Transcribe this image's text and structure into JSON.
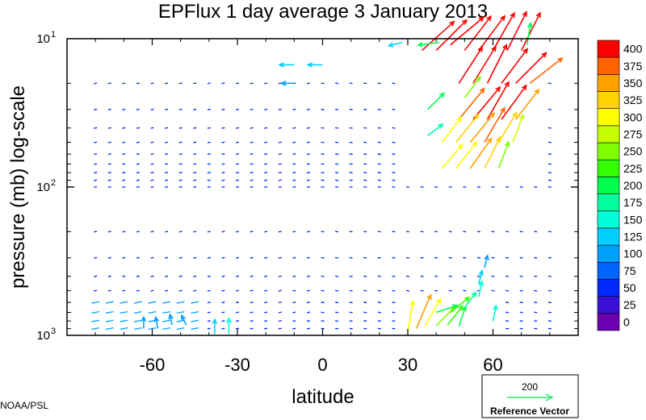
{
  "chart_data": {
    "type": "vector-field",
    "title": "EPFlux  1 day average  3 January   2013",
    "xlabel": "latitude",
    "ylabel": "pressure (mb)  log-scale",
    "xlim": [
      -90,
      90
    ],
    "ylim": [
      1000,
      10
    ],
    "y_scale": "log",
    "x_ticks": [
      -60,
      -30,
      0,
      30,
      60
    ],
    "x_tick_labels": [
      "-60",
      "-30",
      "0",
      "30",
      "60"
    ],
    "y_ticks": [
      1000,
      100,
      10
    ],
    "y_tick_labels": [
      {
        "base": "10",
        "exp": "3"
      },
      {
        "base": "10",
        "exp": "2"
      },
      {
        "base": "10",
        "exp": "1"
      }
    ],
    "colorbar": {
      "levels": [
        0,
        25,
        50,
        75,
        100,
        125,
        150,
        175,
        200,
        225,
        250,
        275,
        300,
        325,
        350,
        375,
        400
      ],
      "labels": [
        "0",
        "25",
        "50",
        "75",
        "100",
        "125",
        "150",
        "175",
        "200",
        "225",
        "250",
        "275",
        "300",
        "325",
        "350",
        "375",
        "400"
      ],
      "colors": [
        "#6a00b0",
        "#3a10d8",
        "#0028ff",
        "#0064ff",
        "#00a0ff",
        "#00d0ff",
        "#00ffd8",
        "#00ffa0",
        "#00ff50",
        "#32ff00",
        "#80ff00",
        "#c8ff00",
        "#ffff00",
        "#ffd200",
        "#ffa000",
        "#ff6400",
        "#ff0000"
      ]
    },
    "reference_vector": {
      "magnitude": 200,
      "label": "Reference Vector",
      "value_label": "200",
      "color": "#2ee86a"
    },
    "vectors": [
      {
        "lat": 35,
        "p": 12,
        "u": 1.0,
        "v": -0.9,
        "mag": 410
      },
      {
        "lat": 40,
        "p": 12,
        "u": 1.1,
        "v": -1.1,
        "mag": 410
      },
      {
        "lat": 45,
        "p": 11,
        "u": 1.2,
        "v": -1.0,
        "mag": 410
      },
      {
        "lat": 50,
        "p": 12,
        "u": 1.0,
        "v": -1.3,
        "mag": 410
      },
      {
        "lat": 55,
        "p": 12,
        "u": 0.9,
        "v": -1.2,
        "mag": 410
      },
      {
        "lat": 60,
        "p": 12,
        "u": 0.8,
        "v": -1.4,
        "mag": 410
      },
      {
        "lat": 65,
        "p": 12,
        "u": 0.6,
        "v": -1.2,
        "mag": 410
      },
      {
        "lat": 70,
        "p": 12,
        "u": 0.5,
        "v": -1.0,
        "mag": 400
      },
      {
        "lat": 48,
        "p": 20,
        "u": 0.9,
        "v": -1.4,
        "mag": 410
      },
      {
        "lat": 53,
        "p": 20,
        "u": 0.8,
        "v": -1.3,
        "mag": 410
      },
      {
        "lat": 58,
        "p": 20,
        "u": 0.7,
        "v": -1.4,
        "mag": 410
      },
      {
        "lat": 63,
        "p": 20,
        "u": 0.9,
        "v": -1.2,
        "mag": 410
      },
      {
        "lat": 68,
        "p": 20,
        "u": 1.0,
        "v": -1.0,
        "mag": 410
      },
      {
        "lat": 73,
        "p": 20,
        "u": 0.9,
        "v": -0.7,
        "mag": 390
      },
      {
        "lat": 48,
        "p": 35,
        "u": 0.9,
        "v": -1.1,
        "mag": 380
      },
      {
        "lat": 53,
        "p": 35,
        "u": 1.0,
        "v": -1.2,
        "mag": 400
      },
      {
        "lat": 58,
        "p": 35,
        "u": 0.8,
        "v": -1.4,
        "mag": 410
      },
      {
        "lat": 63,
        "p": 35,
        "u": 0.8,
        "v": -1.1,
        "mag": 400
      },
      {
        "lat": 68,
        "p": 35,
        "u": 0.7,
        "v": -0.9,
        "mag": 360
      },
      {
        "lat": 42,
        "p": 50,
        "u": 0.7,
        "v": -0.9,
        "mag": 300
      },
      {
        "lat": 47,
        "p": 50,
        "u": 0.8,
        "v": -1.0,
        "mag": 340
      },
      {
        "lat": 52,
        "p": 50,
        "u": 0.9,
        "v": -1.1,
        "mag": 360
      },
      {
        "lat": 57,
        "p": 50,
        "u": 0.7,
        "v": -1.2,
        "mag": 380
      },
      {
        "lat": 62,
        "p": 50,
        "u": 0.6,
        "v": -1.0,
        "mag": 330
      },
      {
        "lat": 67,
        "p": 50,
        "u": 0.3,
        "v": -0.8,
        "mag": 280
      },
      {
        "lat": 42,
        "p": 75,
        "u": 0.6,
        "v": -0.7,
        "mag": 300
      },
      {
        "lat": 47,
        "p": 75,
        "u": 0.7,
        "v": -0.9,
        "mag": 320
      },
      {
        "lat": 52,
        "p": 75,
        "u": 0.7,
        "v": -1.0,
        "mag": 350
      },
      {
        "lat": 57,
        "p": 75,
        "u": 0.5,
        "v": -1.0,
        "mag": 330
      },
      {
        "lat": 62,
        "p": 75,
        "u": 0.3,
        "v": -0.8,
        "mag": 270
      },
      {
        "lat": 37,
        "p": 30,
        "u": 0.5,
        "v": -0.5,
        "mag": 220
      },
      {
        "lat": 37,
        "p": 45,
        "u": 0.4,
        "v": -0.3,
        "mag": 180
      },
      {
        "lat": 50,
        "p": 25,
        "u": 0.6,
        "v": -0.8,
        "mag": 250
      },
      {
        "lat": 72,
        "p": 11,
        "u": 0.1,
        "v": -0.6,
        "mag": 210
      },
      {
        "lat": 41,
        "p": 10.6,
        "u": -0.8,
        "v": 0.1,
        "mag": 200
      },
      {
        "lat": 28,
        "p": 10.6,
        "u": -0.4,
        "v": 0.1,
        "mag": 130
      },
      {
        "lat": 30,
        "p": 950,
        "u": 0.1,
        "v": -0.6,
        "mag": 300
      },
      {
        "lat": 33,
        "p": 900,
        "u": 0.3,
        "v": -0.7,
        "mag": 350
      },
      {
        "lat": 36,
        "p": 870,
        "u": 0.4,
        "v": -0.7,
        "mag": 300
      },
      {
        "lat": 40,
        "p": 860,
        "u": 0.5,
        "v": -0.5,
        "mag": 250
      },
      {
        "lat": 44,
        "p": 850,
        "u": 0.4,
        "v": -0.5,
        "mag": 230
      },
      {
        "lat": 48,
        "p": 870,
        "u": 0.2,
        "v": -0.6,
        "mag": 200
      },
      {
        "lat": 40,
        "p": 700,
        "u": 0.6,
        "v": -0.2,
        "mag": 210
      },
      {
        "lat": 45,
        "p": 700,
        "u": 0.5,
        "v": -0.4,
        "mag": 230
      },
      {
        "lat": 50,
        "p": 650,
        "u": 0.3,
        "v": -0.4,
        "mag": 180
      },
      {
        "lat": 55,
        "p": 550,
        "u": 0.1,
        "v": -0.5,
        "mag": 150
      },
      {
        "lat": 55,
        "p": 450,
        "u": 0.1,
        "v": -0.4,
        "mag": 130
      },
      {
        "lat": 57,
        "p": 350,
        "u": 0.1,
        "v": -0.4,
        "mag": 120
      },
      {
        "lat": 60,
        "p": 800,
        "u": 0.1,
        "v": -0.5,
        "mag": 150
      },
      {
        "lat": -10,
        "p": 15,
        "u": -0.9,
        "v": 0.0,
        "mag": 140
      },
      {
        "lat": 0,
        "p": 15,
        "u": -0.9,
        "v": 0.0,
        "mag": 140
      },
      {
        "lat": -10,
        "p": 20,
        "u": -0.7,
        "v": 0.0,
        "mag": 120
      },
      {
        "lat": -63,
        "p": 900,
        "u": 0.0,
        "v": -0.4,
        "mag": 110
      },
      {
        "lat": -58,
        "p": 900,
        "u": -0.1,
        "v": -0.5,
        "mag": 110
      },
      {
        "lat": -53,
        "p": 850,
        "u": -0.1,
        "v": -0.5,
        "mag": 100
      },
      {
        "lat": -48,
        "p": 850,
        "u": -0.2,
        "v": -0.4,
        "mag": 100
      },
      {
        "lat": -38,
        "p": 980,
        "u": 0.0,
        "v": -0.3,
        "mag": 140
      },
      {
        "lat": -33,
        "p": 980,
        "u": 0.0,
        "v": -0.3,
        "mag": 150
      }
    ]
  },
  "source_label": "NOAA/PSL"
}
